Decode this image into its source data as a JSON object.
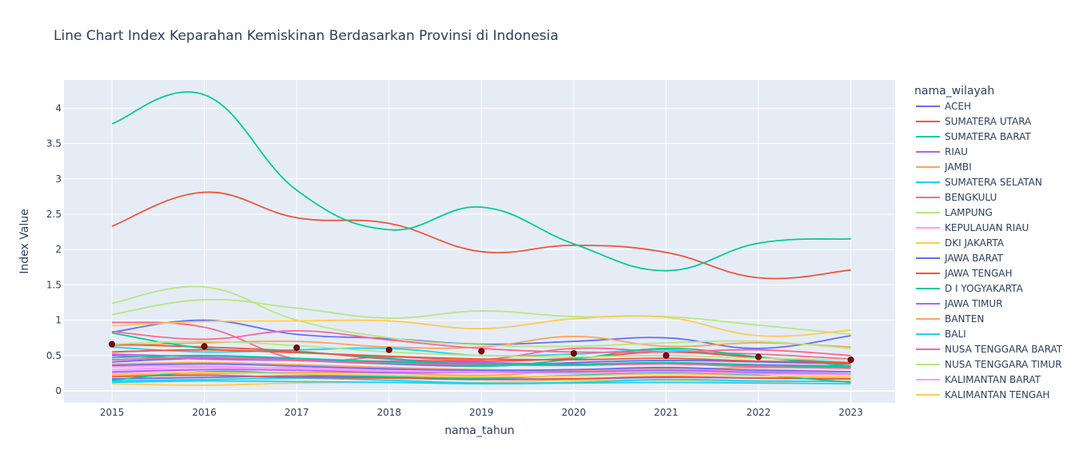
{
  "chart_data": {
    "type": "line",
    "title": "Line Chart Index Keparahan Kemiskinan Berdasarkan Provinsi di Indonesia",
    "xlabel": "nama_tahun",
    "ylabel": "Index Value",
    "legend_title": "nama_wilayah",
    "legend_position": "right",
    "grid": true,
    "x": [
      2015,
      2016,
      2017,
      2018,
      2019,
      2020,
      2021,
      2022,
      2023
    ],
    "x_ticks": [
      "2015",
      "2016",
      "2017",
      "2018",
      "2019",
      "2020",
      "2021",
      "2022",
      "2023"
    ],
    "y_ticks": [
      "0",
      "0.5",
      "1",
      "1.5",
      "2",
      "2.5",
      "3",
      "3.5",
      "4"
    ],
    "xlim": [
      2014.48,
      2023.48
    ],
    "ylim": [
      -0.17,
      4.4
    ],
    "colors": {
      "plot_bg": "#e5ecf6",
      "grid": "#ffffff",
      "text": "#2a3f5f",
      "marker_fill": "#8b0000",
      "marker_stroke": "#3a0000"
    },
    "series": [
      {
        "name": "ACEH",
        "color": "#636efa",
        "values": [
          0.83,
          1.0,
          0.8,
          0.74,
          0.66,
          0.7,
          0.75,
          0.6,
          0.78
        ]
      },
      {
        "name": "SUMATERA UTARA",
        "color": "#EF553B",
        "values": [
          2.33,
          2.81,
          2.45,
          2.37,
          1.97,
          2.06,
          1.96,
          1.6,
          1.71
        ]
      },
      {
        "name": "SUMATERA BARAT",
        "color": "#00cc96",
        "values": [
          3.78,
          4.19,
          2.84,
          2.28,
          2.6,
          2.08,
          1.7,
          2.09,
          2.15
        ]
      },
      {
        "name": "RIAU",
        "color": "#ab63fa",
        "values": [
          0.52,
          0.48,
          0.45,
          0.4,
          0.38,
          0.36,
          0.39,
          0.34,
          0.33
        ]
      },
      {
        "name": "JAMBI",
        "color": "#FFA15A",
        "values": [
          0.64,
          0.68,
          0.7,
          0.62,
          0.62,
          0.77,
          0.63,
          0.68,
          0.62
        ]
      },
      {
        "name": "SUMATERA SELATAN",
        "color": "#19d3f3",
        "values": [
          0.62,
          0.55,
          0.58,
          0.6,
          0.5,
          0.52,
          0.58,
          0.47,
          0.4
        ]
      },
      {
        "name": "BENGKULU",
        "color": "#FF6692",
        "values": [
          0.97,
          0.9,
          0.45,
          0.48,
          0.44,
          0.6,
          0.55,
          0.52,
          0.45
        ]
      },
      {
        "name": "LAMPUNG",
        "color": "#B6E880",
        "values": [
          1.24,
          1.47,
          1.0,
          0.75,
          0.65,
          0.63,
          0.68,
          0.7,
          0.6
        ]
      },
      {
        "name": "KEPULAUAN RIAU",
        "color": "#FF97FF",
        "values": [
          0.25,
          0.3,
          0.33,
          0.3,
          0.28,
          0.26,
          0.28,
          0.3,
          0.27
        ]
      },
      {
        "name": "DKI JAKARTA",
        "color": "#FECB52",
        "values": [
          0.1,
          0.08,
          0.11,
          0.12,
          0.12,
          0.15,
          0.15,
          0.13,
          0.14
        ]
      },
      {
        "name": "JAWA BARAT",
        "color": "#636efa",
        "values": [
          0.41,
          0.46,
          0.43,
          0.38,
          0.35,
          0.4,
          0.43,
          0.41,
          0.38
        ]
      },
      {
        "name": "JAWA TENGAH",
        "color": "#EF553B",
        "values": [
          0.66,
          0.62,
          0.56,
          0.45,
          0.42,
          0.46,
          0.55,
          0.47,
          0.38
        ]
      },
      {
        "name": "D I YOGYAKARTA",
        "color": "#00cc96",
        "values": [
          0.82,
          0.6,
          0.55,
          0.46,
          0.35,
          0.45,
          0.6,
          0.48,
          0.35
        ]
      },
      {
        "name": "JAWA TIMUR",
        "color": "#ab63fa",
        "values": [
          0.5,
          0.45,
          0.43,
          0.42,
          0.4,
          0.38,
          0.4,
          0.37,
          0.35
        ]
      },
      {
        "name": "BANTEN",
        "color": "#FFA15A",
        "values": [
          0.22,
          0.24,
          0.26,
          0.25,
          0.22,
          0.28,
          0.3,
          0.33,
          0.32
        ]
      },
      {
        "name": "BALI",
        "color": "#19d3f3",
        "values": [
          0.14,
          0.16,
          0.18,
          0.15,
          0.11,
          0.12,
          0.16,
          0.14,
          0.13
        ]
      },
      {
        "name": "NUSA TENGGARA BARAT",
        "color": "#FF6692",
        "values": [
          0.84,
          0.73,
          0.85,
          0.72,
          0.6,
          0.55,
          0.55,
          0.58,
          0.5
        ]
      },
      {
        "name": "NUSA TENGGARA TIMUR",
        "color": "#B6E880",
        "values": [
          1.08,
          1.29,
          1.17,
          1.03,
          1.13,
          1.05,
          1.05,
          0.93,
          0.8
        ]
      },
      {
        "name": "KALIMANTAN BARAT",
        "color": "#FF97FF",
        "values": [
          0.34,
          0.35,
          0.31,
          0.29,
          0.27,
          0.29,
          0.31,
          0.28,
          0.27
        ]
      },
      {
        "name": "KALIMANTAN TENGAH",
        "color": "#FECB52",
        "values": [
          0.92,
          0.98,
          0.99,
          0.99,
          0.88,
          1.02,
          1.04,
          0.78,
          0.86
        ]
      },
      {
        "color": "#636efa",
        "values": [
          0.17,
          0.19,
          0.21,
          0.19,
          0.17,
          0.17,
          0.19,
          0.18,
          0.17
        ]
      },
      {
        "color": "#EF553B",
        "values": [
          0.2,
          0.22,
          0.19,
          0.18,
          0.16,
          0.17,
          0.2,
          0.18,
          0.17
        ]
      },
      {
        "color": "#00cc96",
        "values": [
          0.15,
          0.27,
          0.24,
          0.2,
          0.18,
          0.22,
          0.25,
          0.22,
          0.12
        ]
      },
      {
        "color": "#ab63fa",
        "values": [
          0.27,
          0.3,
          0.29,
          0.26,
          0.26,
          0.27,
          0.29,
          0.26,
          0.24
        ]
      },
      {
        "color": "#FFA15A",
        "values": [
          0.38,
          0.4,
          0.37,
          0.33,
          0.3,
          0.29,
          0.31,
          0.29,
          0.27
        ]
      },
      {
        "color": "#19d3f3",
        "values": [
          0.12,
          0.14,
          0.13,
          0.12,
          0.1,
          0.11,
          0.12,
          0.11,
          0.1
        ]
      },
      {
        "color": "#FF6692",
        "values": [
          0.44,
          0.47,
          0.43,
          0.39,
          0.37,
          0.36,
          0.38,
          0.34,
          0.32
        ]
      },
      {
        "color": "#B6E880",
        "values": [
          0.66,
          0.7,
          0.64,
          0.55,
          0.5,
          0.48,
          0.5,
          0.46,
          0.44
        ]
      },
      {
        "color": "#FF97FF",
        "values": [
          0.3,
          0.33,
          0.31,
          0.28,
          0.26,
          0.25,
          0.27,
          0.24,
          0.23
        ]
      },
      {
        "color": "#FECB52",
        "values": [
          0.23,
          0.26,
          0.24,
          0.22,
          0.2,
          0.21,
          0.24,
          0.21,
          0.2
        ]
      },
      {
        "color": "#636efa",
        "values": [
          0.36,
          0.38,
          0.35,
          0.31,
          0.29,
          0.3,
          0.33,
          0.29,
          0.27
        ]
      },
      {
        "color": "#EF553B",
        "values": [
          0.55,
          0.58,
          0.54,
          0.49,
          0.45,
          0.44,
          0.46,
          0.42,
          0.4
        ]
      },
      {
        "color": "#00cc96",
        "values": [
          0.47,
          0.5,
          0.46,
          0.41,
          0.38,
          0.37,
          0.4,
          0.36,
          0.34
        ]
      }
    ],
    "average_markers": [
      0.66,
      0.63,
      0.61,
      0.58,
      0.56,
      0.53,
      0.5,
      0.48,
      0.44
    ]
  }
}
